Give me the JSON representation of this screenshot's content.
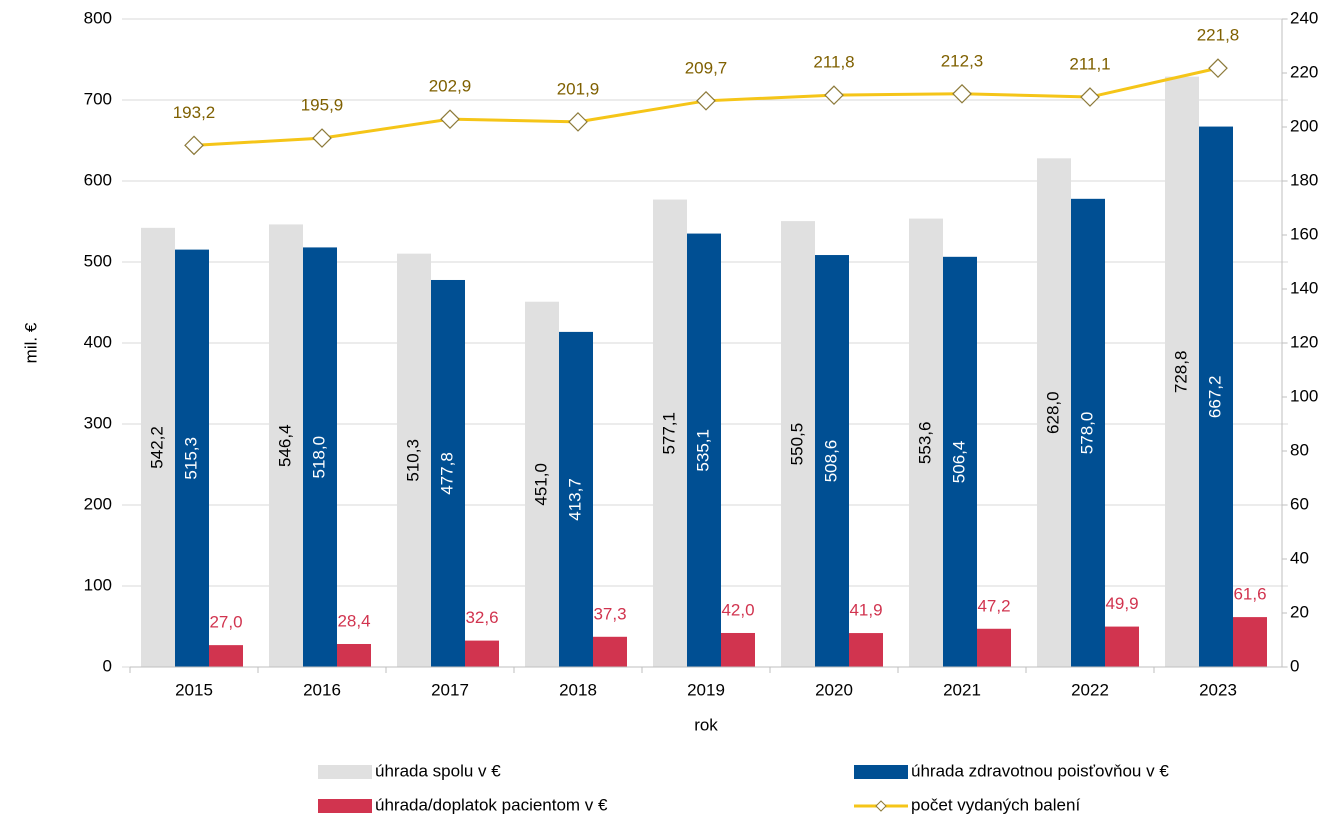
{
  "chart_data": {
    "type": "bar",
    "categories": [
      "2015",
      "2016",
      "2017",
      "2018",
      "2019",
      "2020",
      "2021",
      "2022",
      "2023"
    ],
    "xlabel": "rok",
    "ylabel": "mil. €",
    "ylim": [
      0,
      800
    ],
    "yticks": [
      0,
      100,
      200,
      300,
      400,
      500,
      600,
      700,
      800
    ],
    "y2lim": [
      0,
      240
    ],
    "y2ticks": [
      0,
      20,
      40,
      60,
      80,
      100,
      120,
      140,
      160,
      180,
      200,
      220,
      240
    ],
    "grid": true,
    "series": [
      {
        "name": "úhrada spolu v €",
        "color": "#e0e0e0",
        "values": [
          542.2,
          546.4,
          510.3,
          451.0,
          577.1,
          550.5,
          553.6,
          628.0,
          728.8
        ],
        "value_labels": [
          "542,2",
          "546,4",
          "510,3",
          "451,0",
          "577,1",
          "550,5",
          "553,6",
          "628,0",
          "728,8"
        ]
      },
      {
        "name": "úhrada zdravotnou poisťovňou v €",
        "color": "#004f93",
        "values": [
          515.3,
          518.0,
          477.8,
          413.7,
          535.1,
          508.6,
          506.4,
          578.0,
          667.2
        ],
        "value_labels": [
          "515,3",
          "518,0",
          "477,8",
          "413,7",
          "535,1",
          "508,6",
          "506,4",
          "578,0",
          "667,2"
        ]
      },
      {
        "name": "úhrada/doplatok pacientom v €",
        "color": "#d1344f",
        "values": [
          27.0,
          28.4,
          32.6,
          37.3,
          42.0,
          41.9,
          47.2,
          49.9,
          61.6
        ],
        "value_labels": [
          "27,0",
          "28,4",
          "32,6",
          "37,3",
          "42,0",
          "41,9",
          "47,2",
          "49,9",
          "61,6"
        ]
      },
      {
        "name": "počet vydaných balení",
        "type": "line",
        "axis": "y2",
        "color": "#f5c518",
        "values": [
          193.2,
          195.9,
          202.9,
          201.9,
          209.7,
          211.8,
          212.3,
          211.1,
          221.8
        ],
        "value_labels": [
          "193,2",
          "195,9",
          "202,9",
          "201,9",
          "209,7",
          "211,8",
          "212,3",
          "211,1",
          "221,8"
        ]
      }
    ]
  }
}
